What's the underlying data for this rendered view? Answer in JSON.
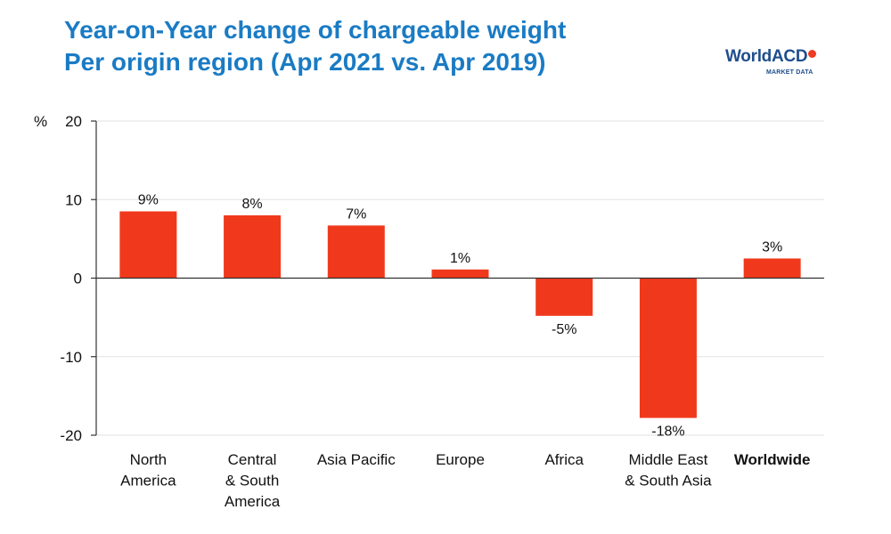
{
  "title_line1": "Year-on-Year change of chargeable weight",
  "title_line2": "Per origin region (Apr 2021 vs. Apr 2019)",
  "logo": {
    "name": "WorldACD",
    "subtitle": "MARKET DATA"
  },
  "chart_data": {
    "type": "bar",
    "ylabel": "%",
    "ylim": [
      -20,
      20
    ],
    "yticks": [
      20,
      10,
      0,
      -10,
      -20
    ],
    "grid": true,
    "categories": [
      [
        "North",
        "America"
      ],
      [
        "Central",
        "& South",
        "America"
      ],
      [
        "Asia Pacific"
      ],
      [
        "Europe"
      ],
      [
        "Africa"
      ],
      [
        "Middle East",
        "& South Asia"
      ],
      [
        "Worldwide"
      ]
    ],
    "values": [
      8.5,
      8.0,
      6.7,
      1.1,
      -4.8,
      -17.8,
      2.5
    ],
    "data_labels": [
      "9%",
      "8%",
      "7%",
      "1%",
      "-5%",
      "-18%",
      "3%"
    ],
    "emphasized_category_index": 6,
    "bar_color": "#f0391c",
    "axis_color": "#333333",
    "grid_color": "#e2e2e2"
  }
}
